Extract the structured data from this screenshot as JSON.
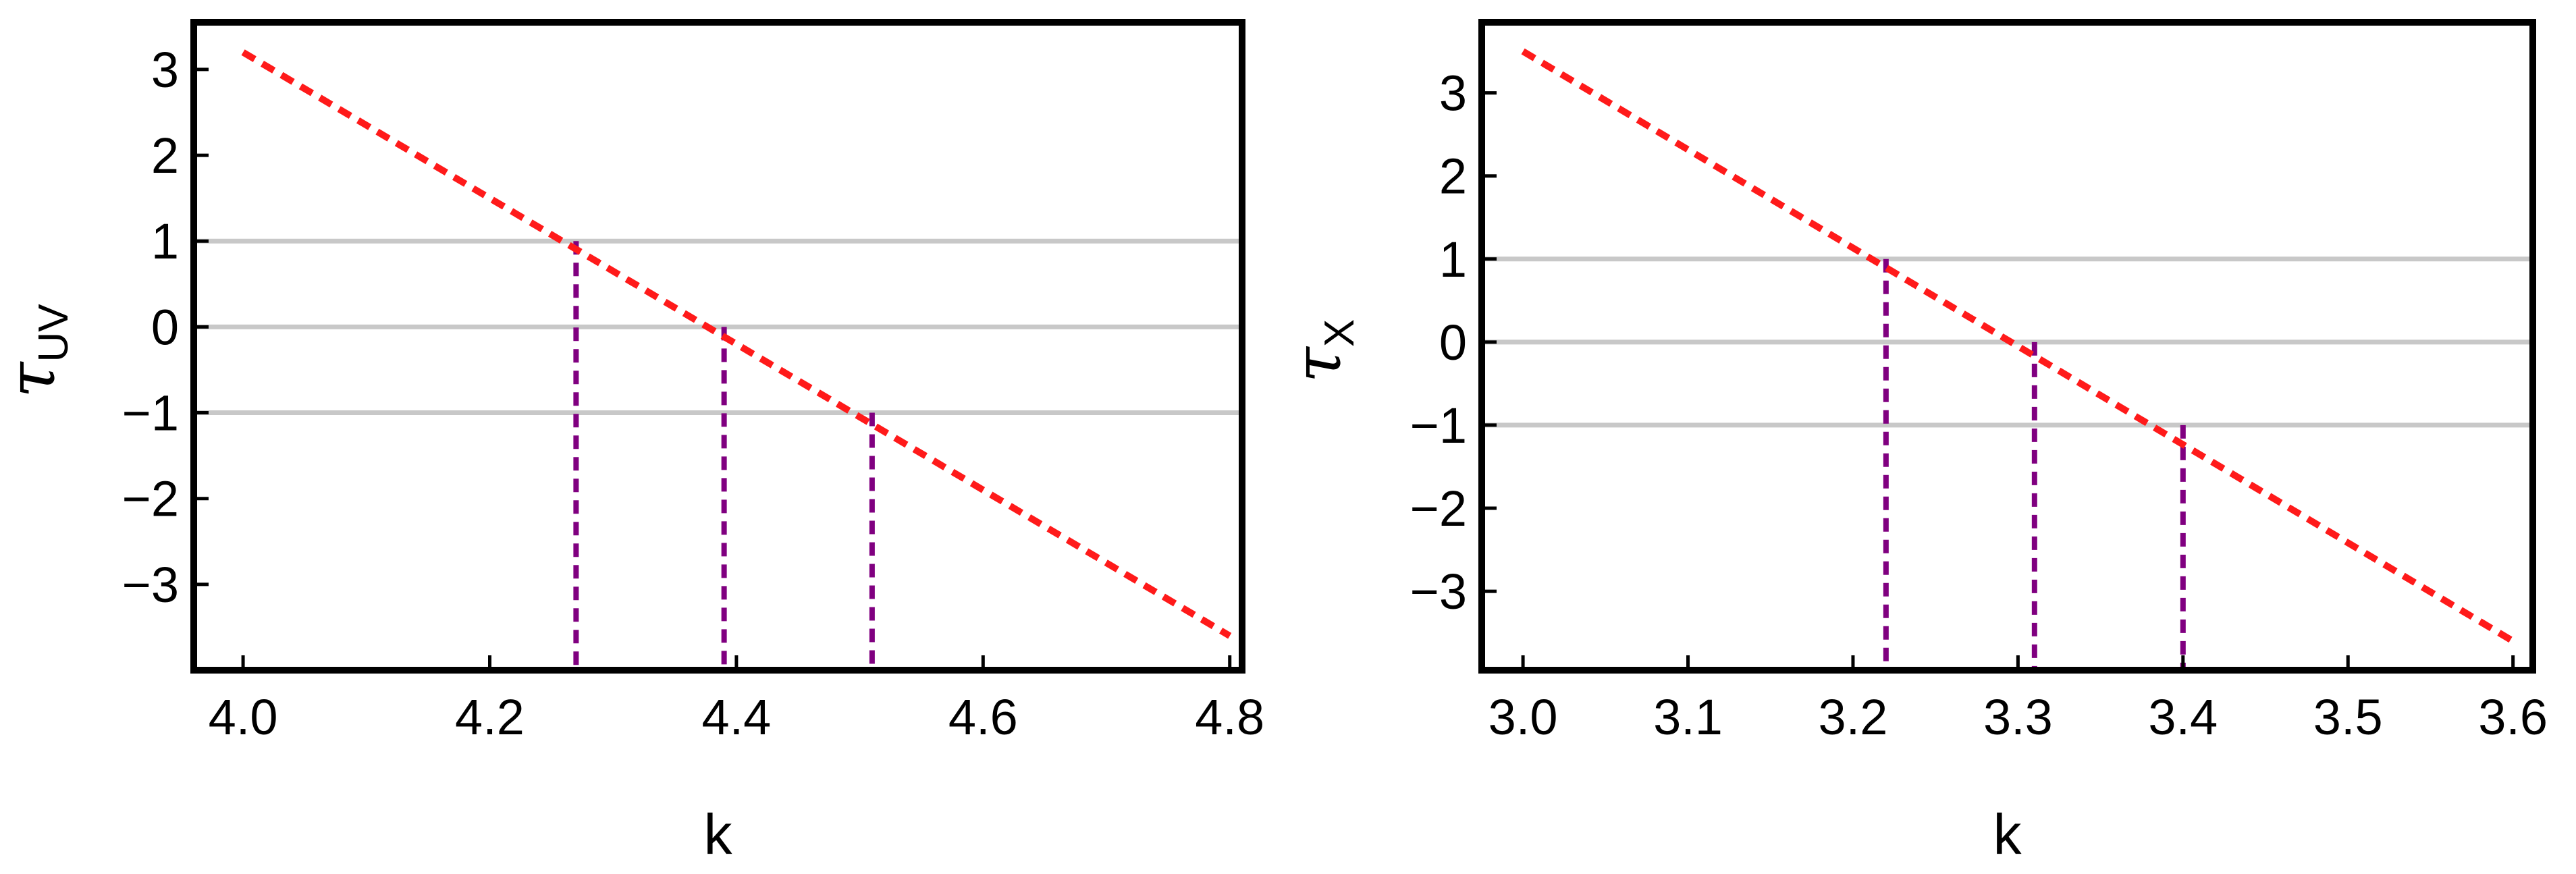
{
  "chart_data": [
    {
      "type": "line",
      "xlabel": "k",
      "ylabel": {
        "symbol": "τ",
        "subscript": "UV"
      },
      "xlim": [
        3.96,
        4.81
      ],
      "ylim": [
        -4.0,
        3.55
      ],
      "xticks": [
        "4.0",
        "4.2",
        "4.4",
        "4.6",
        "4.8"
      ],
      "yticks": [
        "3",
        "2",
        "1",
        "0",
        "−1",
        "−2",
        "−3"
      ],
      "series": [
        {
          "style": "dashed",
          "color": "#ff1a1a",
          "x": [
            4.0,
            4.8
          ],
          "y": [
            3.2,
            -3.6
          ]
        }
      ],
      "reference_lines_y": [
        1,
        0,
        -1
      ],
      "reference_line_color": "#c8c8c8",
      "drop_lines": [
        {
          "x": 4.27,
          "y": 1
        },
        {
          "x": 4.39,
          "y": 0
        },
        {
          "x": 4.51,
          "y": -1
        }
      ],
      "drop_line_color": "#800080",
      "grid": false
    },
    {
      "type": "line",
      "xlabel": "k",
      "ylabel": {
        "symbol": "τ",
        "subscript": "X"
      },
      "xlim": [
        2.975,
        3.612
      ],
      "ylim": [
        -3.95,
        3.85
      ],
      "xticks": [
        "3.0",
        "3.1",
        "3.2",
        "3.3",
        "3.4",
        "3.5",
        "3.6"
      ],
      "yticks": [
        "3",
        "2",
        "1",
        "0",
        "−1",
        "−2",
        "−3"
      ],
      "series": [
        {
          "style": "dashed",
          "color": "#ff1a1a",
          "x": [
            3.0,
            3.6
          ],
          "y": [
            3.5,
            -3.6
          ]
        }
      ],
      "reference_lines_y": [
        1,
        0,
        -1
      ],
      "reference_line_color": "#c8c8c8",
      "drop_lines": [
        {
          "x": 3.22,
          "y": 1
        },
        {
          "x": 3.31,
          "y": 0
        },
        {
          "x": 3.4,
          "y": -1
        }
      ],
      "drop_line_color": "#800080",
      "grid": false
    }
  ]
}
